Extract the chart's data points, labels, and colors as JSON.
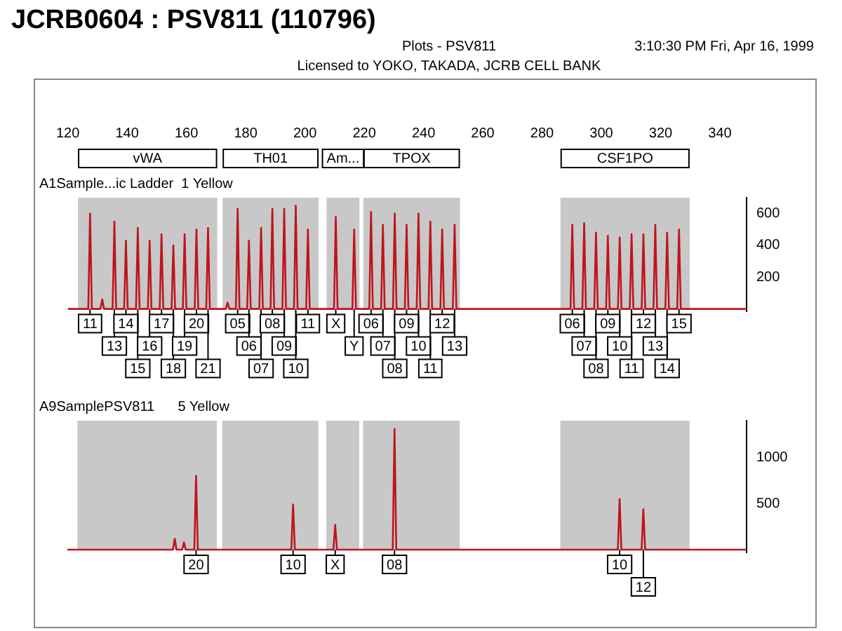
{
  "chart_data": [
    {
      "type": "other",
      "title": "JCRB0604 : PSV811 (110796)",
      "subtitle": "Plots - PSV811",
      "annotations": [
        "Licensed to YOKO, TAKADA, JCRB CELL BANK",
        "3:10:30 PM Fri, Apr 16, 1999"
      ]
    },
    {
      "type": "line",
      "title": "A1Sample...ic Ladder  1 Yellow",
      "xlim": [
        120,
        349
      ],
      "xticks": [
        120,
        140,
        160,
        180,
        200,
        220,
        240,
        260,
        280,
        300,
        320,
        340
      ],
      "ylim": [
        -15,
        700
      ],
      "yticks": [
        200,
        400,
        600
      ],
      "series": [
        {
          "color": "#c0141c",
          "x": [
            120,
            126.9,
            127.5,
            128.1,
            131.0,
            131.6,
            132.2,
            135.1,
            135.7,
            136.3,
            139.0,
            139.6,
            140.2,
            143.0,
            143.6,
            144.2,
            147.0,
            147.6,
            148.2,
            151.0,
            151.6,
            152.2,
            155.0,
            155.6,
            156.2,
            158.8,
            159.4,
            160.0,
            162.8,
            163.4,
            164.0,
            166.7,
            167.3,
            167.9,
            173.3,
            173.9,
            174.5,
            176.7,
            177.3,
            177.9,
            180.5,
            181.1,
            181.7,
            184.6,
            185.2,
            185.8,
            188.4,
            189.0,
            189.6,
            192.4,
            193.0,
            193.6,
            196.3,
            196.9,
            197.5,
            200.4,
            201.0,
            201.6,
            209.8,
            210.4,
            211.0,
            216.0,
            216.6,
            217.2,
            221.7,
            222.3,
            222.9,
            225.7,
            226.3,
            226.9,
            229.7,
            230.3,
            230.9,
            233.7,
            234.3,
            234.9,
            237.7,
            238.3,
            238.9,
            241.7,
            242.3,
            242.9,
            245.7,
            246.3,
            246.9,
            249.9,
            250.5,
            251.1,
            289.6,
            290.2,
            290.8,
            293.6,
            294.2,
            294.8,
            297.6,
            298.2,
            298.8,
            301.6,
            302.2,
            302.8,
            305.6,
            306.2,
            306.8,
            309.6,
            310.2,
            310.8,
            313.6,
            314.2,
            314.8,
            317.6,
            318.2,
            318.8,
            321.6,
            322.2,
            322.8,
            325.6,
            326.2,
            326.8,
            349
          ],
          "values": [
            0,
            0,
            600,
            0,
            0,
            60,
            0,
            0,
            550,
            0,
            0,
            430,
            0,
            0,
            510,
            0,
            0,
            430,
            0,
            0,
            470,
            0,
            0,
            400,
            0,
            0,
            470,
            0,
            0,
            500,
            0,
            0,
            510,
            0,
            0,
            40,
            0,
            0,
            630,
            0,
            0,
            430,
            0,
            0,
            510,
            0,
            0,
            630,
            0,
            0,
            630,
            0,
            0,
            650,
            0,
            0,
            500,
            0,
            0,
            580,
            0,
            0,
            500,
            0,
            0,
            610,
            0,
            0,
            530,
            0,
            0,
            600,
            0,
            0,
            530,
            0,
            0,
            600,
            0,
            0,
            550,
            0,
            0,
            500,
            0,
            0,
            530,
            0,
            0,
            530,
            0,
            0,
            540,
            0,
            0,
            480,
            0,
            0,
            460,
            0,
            0,
            450,
            0,
            0,
            470,
            0,
            0,
            470,
            0,
            0,
            530,
            0,
            0,
            480,
            0,
            0,
            500,
            0,
            0
          ]
        }
      ],
      "bands": [
        {
          "axis": "x",
          "from": 123.4,
          "to": 170.4,
          "label": "vWA",
          "color": "#c8c8c8"
        },
        {
          "axis": "x",
          "from": 172.2,
          "to": 204.6,
          "label": "TH01",
          "color": "#c8c8c8"
        },
        {
          "axis": "x",
          "from": 207.3,
          "to": 218.4,
          "label": "Am...",
          "color": "#c8c8c8"
        },
        {
          "axis": "x",
          "from": 219.7,
          "to": 252.3,
          "label": "TPOX",
          "color": "#c8c8c8"
        },
        {
          "axis": "x",
          "from": 286.2,
          "to": 329.8,
          "label": "CSF1PO",
          "color": "#c8c8c8"
        }
      ],
      "annotations": [
        {
          "text": "11",
          "x": 127.5,
          "y": 0
        },
        {
          "text": "13",
          "x": 135.7,
          "y": 0
        },
        {
          "text": "14",
          "x": 139.6,
          "y": 0
        },
        {
          "text": "15",
          "x": 143.6,
          "y": 0
        },
        {
          "text": "16",
          "x": 147.6,
          "y": 0
        },
        {
          "text": "17",
          "x": 151.6,
          "y": 0
        },
        {
          "text": "18",
          "x": 155.6,
          "y": 0
        },
        {
          "text": "19",
          "x": 159.4,
          "y": 0
        },
        {
          "text": "20",
          "x": 163.4,
          "y": 0
        },
        {
          "text": "21",
          "x": 167.3,
          "y": 0
        },
        {
          "text": "05",
          "x": 177.3,
          "y": 0
        },
        {
          "text": "06",
          "x": 181.1,
          "y": 0
        },
        {
          "text": "07",
          "x": 185.2,
          "y": 0
        },
        {
          "text": "08",
          "x": 189.0,
          "y": 0
        },
        {
          "text": "09",
          "x": 193.0,
          "y": 0
        },
        {
          "text": "10",
          "x": 196.9,
          "y": 0
        },
        {
          "text": "11",
          "x": 201.0,
          "y": 0
        },
        {
          "text": "X",
          "x": 210.4,
          "y": 0
        },
        {
          "text": "Y",
          "x": 216.6,
          "y": 0
        },
        {
          "text": "06",
          "x": 222.3,
          "y": 0
        },
        {
          "text": "07",
          "x": 226.3,
          "y": 0
        },
        {
          "text": "08",
          "x": 230.3,
          "y": 0
        },
        {
          "text": "09",
          "x": 234.3,
          "y": 0
        },
        {
          "text": "10",
          "x": 238.3,
          "y": 0
        },
        {
          "text": "11",
          "x": 242.3,
          "y": 0
        },
        {
          "text": "12",
          "x": 246.3,
          "y": 0
        },
        {
          "text": "13",
          "x": 250.5,
          "y": 0
        },
        {
          "text": "06",
          "x": 290.2,
          "y": 0
        },
        {
          "text": "07",
          "x": 294.2,
          "y": 0
        },
        {
          "text": "08",
          "x": 298.2,
          "y": 0
        },
        {
          "text": "09",
          "x": 302.2,
          "y": 0
        },
        {
          "text": "10",
          "x": 306.2,
          "y": 0
        },
        {
          "text": "11",
          "x": 310.2,
          "y": 0
        },
        {
          "text": "12",
          "x": 314.2,
          "y": 0
        },
        {
          "text": "13",
          "x": 318.2,
          "y": 0
        },
        {
          "text": "14",
          "x": 322.2,
          "y": 0
        },
        {
          "text": "15",
          "x": 326.2,
          "y": 0
        }
      ]
    },
    {
      "type": "line",
      "title": "A9SamplePSV811      5 Yellow",
      "xlim": [
        120,
        349
      ],
      "ylim": [
        -30,
        1400
      ],
      "yticks": [
        500,
        1000
      ],
      "tick_labels": "y",
      "series": [
        {
          "color": "#c0141c",
          "x": [
            120,
            155.6,
            156.2,
            156.8,
            158.7,
            159.3,
            159.9,
            162.8,
            163.4,
            164.0,
            195.5,
            196.1,
            196.7,
            209.7,
            210.3,
            210.9,
            229.7,
            230.3,
            230.9,
            305.6,
            306.2,
            306.8,
            313.6,
            314.2,
            314.8,
            349
          ],
          "values": [
            0,
            0,
            120,
            0,
            0,
            80,
            0,
            0,
            800,
            0,
            0,
            490,
            0,
            0,
            270,
            0,
            0,
            1310,
            0,
            0,
            550,
            0,
            0,
            440,
            0,
            0
          ]
        }
      ],
      "bands": [
        {
          "axis": "x",
          "from": 123.4,
          "to": 170.4,
          "color": "#c8c8c8"
        },
        {
          "axis": "x",
          "from": 172.2,
          "to": 204.6,
          "color": "#c8c8c8"
        },
        {
          "axis": "x",
          "from": 207.3,
          "to": 218.4,
          "color": "#c8c8c8"
        },
        {
          "axis": "x",
          "from": 219.7,
          "to": 252.3,
          "color": "#c8c8c8"
        },
        {
          "axis": "x",
          "from": 286.2,
          "to": 329.8,
          "color": "#c8c8c8"
        }
      ],
      "annotations": [
        {
          "text": "20",
          "x": 163.4,
          "y": 0
        },
        {
          "text": "10",
          "x": 196.1,
          "y": 0
        },
        {
          "text": "X",
          "x": 210.3,
          "y": 0
        },
        {
          "text": "08",
          "x": 230.3,
          "y": 0
        },
        {
          "text": "10",
          "x": 306.2,
          "y": 0
        },
        {
          "text": "12",
          "x": 314.2,
          "y": 0
        }
      ]
    }
  ]
}
